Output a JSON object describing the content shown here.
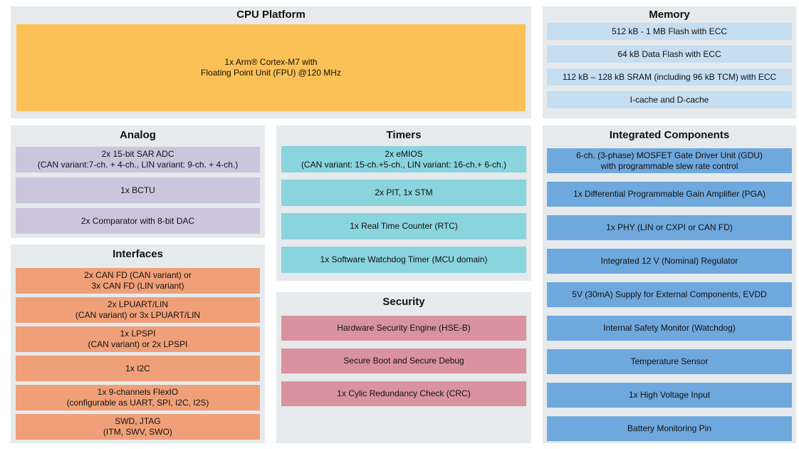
{
  "page": {
    "background": "#FFFFFF",
    "section_background": "#E6EAEC",
    "text_color": "#111111"
  },
  "sections": {
    "cpu_platform": {
      "title": "CPU Platform",
      "color": "#FBC157",
      "block": "1x Arm® Cortex-M7 with\nFloating Point Unit (FPU) @120 MHz"
    },
    "memory": {
      "title": "Memory",
      "color": "#C5DEF1",
      "rows": [
        "512 kB - 1 MB Flash with ECC",
        "64 kB Data Flash with ECC",
        "112 kB – 128 kB SRAM (including 96 kB TCM) with ECC",
        "I-cache and D-cache"
      ]
    },
    "analog": {
      "title": "Analog",
      "color": "#CCC5DE",
      "rows": [
        "2x 15-bit SAR ADC\n(CAN variant:7-ch. + 4-ch., LIN variant: 9-ch. + 4-ch.)",
        "1x BCTU",
        "2x Comparator with 8-bit DAC"
      ]
    },
    "interfaces": {
      "title": "Interfaces",
      "color": "#F0A078",
      "rows": [
        "2x CAN FD (CAN variant) or\n3x CAN FD (LIN variant)",
        "2x LPUART/LIN\n(CAN variant) or 3x LPUART/LIN",
        "1x LPSPI\n(CAN variant) or 2x LPSPI",
        "1x I2C",
        "1x 9-channels FlexIO\n(configurable as UART, SPI, I2C, I2S)",
        "SWD, JTAG\n(ITM, SWV, SWO)"
      ]
    },
    "timers": {
      "title": "Timers",
      "color": "#8AD4DE",
      "rows": [
        "2x eMIOS\n(CAN variant: 15-ch.+5-ch., LIN variant: 16-ch.+ 6-ch.)",
        "2x PIT, 1x STM",
        "1x Real Time Counter (RTC)",
        "1x Software Watchdog Timer (MCU domain)"
      ]
    },
    "security": {
      "title": "Security",
      "color": "#D9939E",
      "rows": [
        "Hardware Security Engine (HSE-B)",
        "Secure Boot and Secure Debug",
        "1x Cylic Redundancy Check (CRC)"
      ]
    },
    "integrated_components": {
      "title": "Integrated Components",
      "color": "#6FA8DC",
      "rows": [
        "6-ch. (3-phase) MOSFET Gate Driver Unit (GDU)\nwith programmable slew rate control",
        "1x Differential Programmable Gain Amplifier (PGA)",
        "1x PHY (LIN or CXPI or CAN FD)",
        "Integrated 12 V (Nominal) Regulator",
        "5V (30mA) Supply for External Components, EVDD",
        "Internal Safety Monitor (Watchdog)",
        "Temperature Sensor",
        "1x High Voltage Input",
        "Battery Monitoring Pin"
      ]
    }
  }
}
